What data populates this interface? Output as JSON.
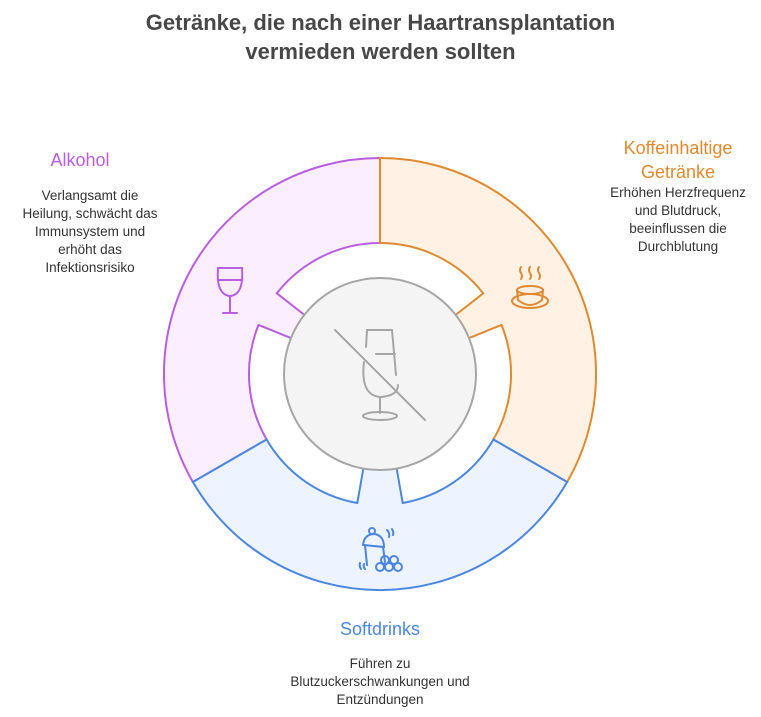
{
  "title": {
    "line1": "Getränke, die nach einer Haartransplantation",
    "line2": "vermieden werden sollten"
  },
  "colors": {
    "alkohol": "#b85ee0",
    "koffein": "#e0892f",
    "softdrinks": "#4b86e0",
    "center": "#a6a6a6"
  },
  "segments": [
    {
      "id": "alkohol",
      "label": "Alkohol",
      "icon": "wine-glass-icon",
      "desc": [
        "Verlangsamt die",
        "Heilung, schwächt das",
        "Immunsystem und",
        "erhöht das",
        "Infektionsrisiko"
      ]
    },
    {
      "id": "koffein",
      "label_lines": [
        "Koffeinhaltige",
        "Getränke"
      ],
      "icon": "coffee-cup-icon",
      "desc": [
        "Erhöhen Herzfrequenz",
        "und Blutdruck,",
        "beeinflussen die",
        "Durchblutung"
      ]
    },
    {
      "id": "softdrinks",
      "label": "Softdrinks",
      "icon": "shaker-icon",
      "desc": [
        "Führen zu",
        "Blutzuckerschwankungen und",
        "Entzündungen"
      ]
    }
  ],
  "center_icon": "no-drinks-icon"
}
